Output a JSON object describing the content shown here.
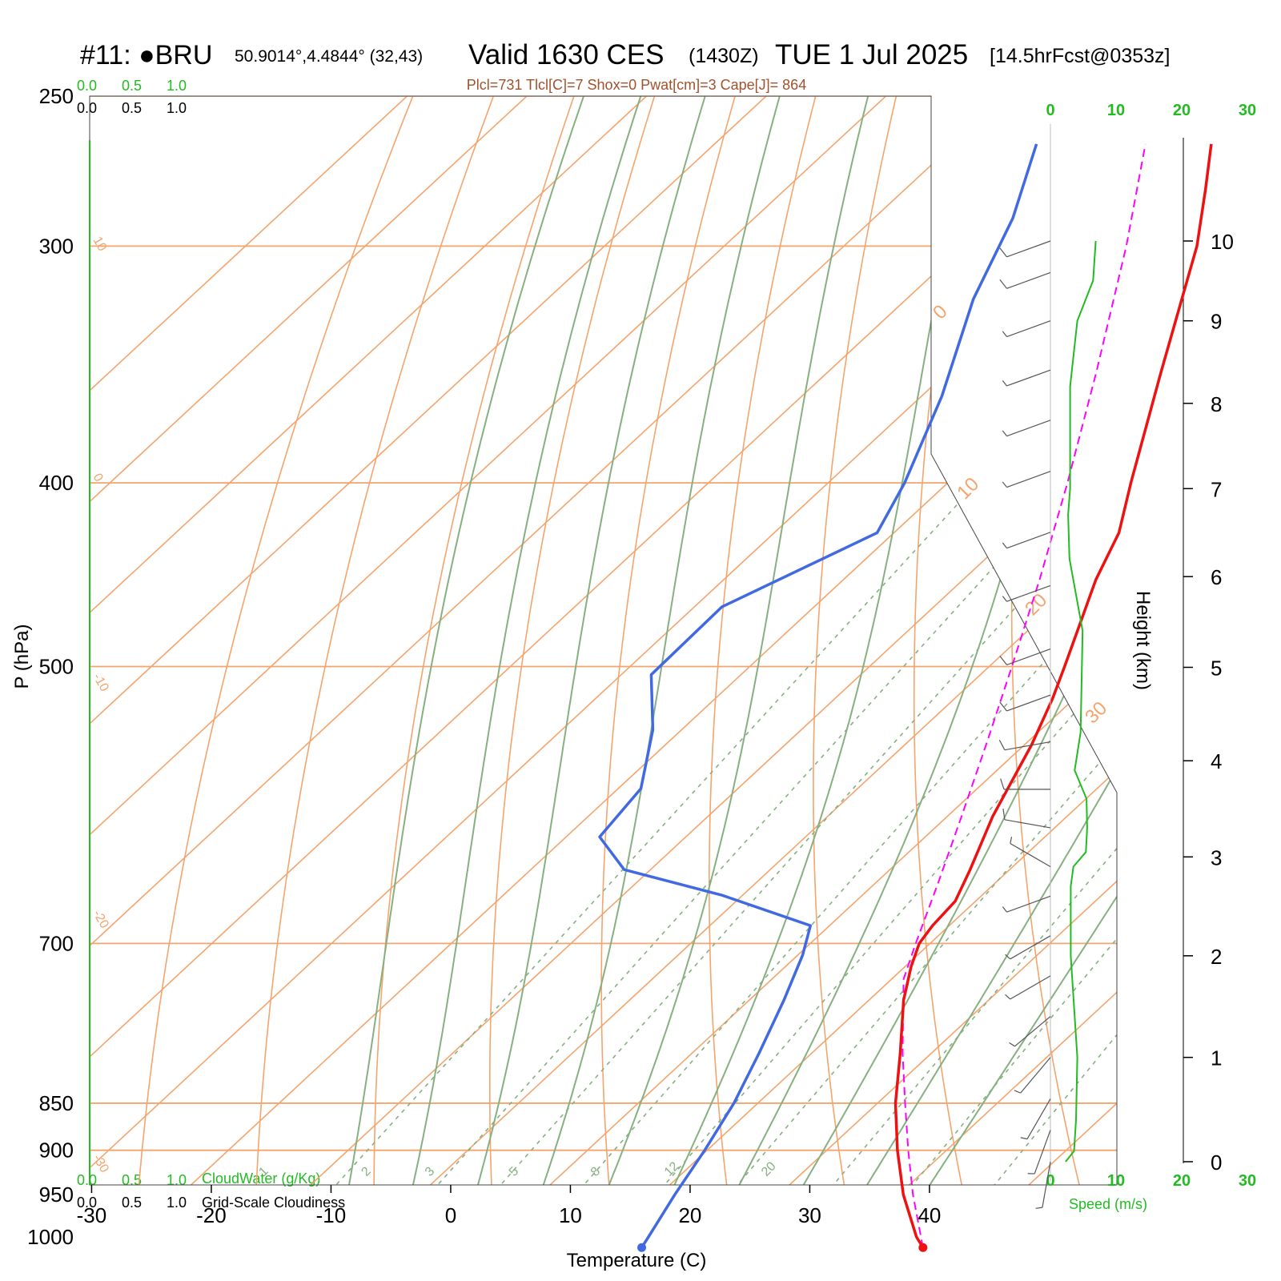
{
  "title": {
    "station": "#11: ●BRU",
    "coords": "50.9014°,4.4844° (32,43)",
    "valid": "Valid 1630 CES",
    "zulu": "(1430Z)",
    "date": "TUE 1 Jul 2025",
    "forecast": "[14.5hrFcst@0353z]"
  },
  "indices": "Plcl=731 Tlcl[C]=7 Shox=0 Pwat[cm]=3 Cape[J]= 864",
  "cloud_scale": {
    "cloudwater_ticks": [
      "0.0",
      "0.5",
      "1.0"
    ],
    "cloudwater_label": "CloudWater (g/Kg)",
    "cloudiness_ticks": [
      "0.0",
      "0.5",
      "1.0"
    ],
    "cloudiness_label": "Grid-Scale Cloudiness"
  },
  "speed_axis": {
    "ticks": [
      "0",
      "10",
      "20",
      "30"
    ],
    "label": "Speed (m/s)"
  },
  "colors": {
    "temperature": "#ee1111",
    "dewpoint": "#4169e1",
    "parcel": "#ff00ff",
    "isotherm": "#f4a46c",
    "moist_adiabat": "#86b080",
    "mixing_ratio": "#86b080",
    "speed": "#22bb22",
    "label_green": "#22bb22"
  },
  "chart_data": {
    "type": "skew-t log-p sounding",
    "xlabel": "Temperature (C)",
    "ylabel": "P (hPa)",
    "y2label": "Height (km)",
    "x_ticks": [
      -30,
      -20,
      -10,
      0,
      10,
      20,
      30,
      40
    ],
    "pressure_ticks": [
      250,
      300,
      400,
      500,
      700,
      850,
      900,
      950,
      1000
    ],
    "height_ticks_km": [
      0,
      1,
      2,
      3,
      4,
      5,
      6,
      7,
      8,
      9,
      10
    ],
    "isotherm_labels": [
      "30",
      "20",
      "10",
      "0",
      "-10",
      "-20",
      "-30"
    ],
    "mixing_ratio_labels": [
      "1",
      "2",
      "3",
      "5",
      "8",
      "12",
      "20"
    ],
    "temperature": [
      {
        "p": 1013,
        "t": 36.8
      },
      {
        "p": 1000,
        "t": 35.3
      },
      {
        "p": 950,
        "t": 30.4
      },
      {
        "p": 900,
        "t": 25.9
      },
      {
        "p": 850,
        "t": 21.5
      },
      {
        "p": 800,
        "t": 17.4
      },
      {
        "p": 750,
        "t": 12.9
      },
      {
        "p": 720,
        "t": 10.5
      },
      {
        "p": 700,
        "t": 9.1
      },
      {
        "p": 685,
        "t": 8.6
      },
      {
        "p": 665,
        "t": 8.3
      },
      {
        "p": 640,
        "t": 6.7
      },
      {
        "p": 600,
        "t": 3.8
      },
      {
        "p": 550,
        "t": 0.6
      },
      {
        "p": 520,
        "t": -1.8
      },
      {
        "p": 500,
        "t": -3.7
      },
      {
        "p": 450,
        "t": -8.9
      },
      {
        "p": 425,
        "t": -11.2
      },
      {
        "p": 400,
        "t": -14.7
      },
      {
        "p": 350,
        "t": -22.1
      },
      {
        "p": 300,
        "t": -30.5
      },
      {
        "p": 280,
        "t": -34.9
      },
      {
        "p": 265,
        "t": -38.5
      }
    ],
    "dewpoint": [
      {
        "p": 1013,
        "t": 13.3
      },
      {
        "p": 1000,
        "t": 12.9
      },
      {
        "p": 950,
        "t": 11.3
      },
      {
        "p": 900,
        "t": 9.8
      },
      {
        "p": 850,
        "t": 8.0
      },
      {
        "p": 800,
        "t": 5.6
      },
      {
        "p": 750,
        "t": 2.9
      },
      {
        "p": 710,
        "t": 0.4
      },
      {
        "p": 685,
        "t": -1.6
      },
      {
        "p": 660,
        "t": -11.8
      },
      {
        "p": 640,
        "t": -22.2
      },
      {
        "p": 615,
        "t": -27.2
      },
      {
        "p": 580,
        "t": -28.1
      },
      {
        "p": 540,
        "t": -32.4
      },
      {
        "p": 505,
        "t": -37.5
      },
      {
        "p": 465,
        "t": -37.7
      },
      {
        "p": 425,
        "t": -31.4
      },
      {
        "p": 400,
        "t": -33.6
      },
      {
        "p": 360,
        "t": -38.3
      },
      {
        "p": 320,
        "t": -44.4
      },
      {
        "p": 290,
        "t": -48.4
      },
      {
        "p": 265,
        "t": -53.1
      }
    ],
    "parcel": [
      {
        "p": 1013,
        "t": 36.8
      },
      {
        "p": 950,
        "t": 31.2
      },
      {
        "p": 900,
        "t": 26.8
      },
      {
        "p": 850,
        "t": 22.3
      },
      {
        "p": 800,
        "t": 17.6
      },
      {
        "p": 731,
        "t": 11.0
      },
      {
        "p": 700,
        "t": 8.8
      },
      {
        "p": 650,
        "t": 5.2
      },
      {
        "p": 600,
        "t": 1.2
      },
      {
        "p": 550,
        "t": -3.2
      },
      {
        "p": 500,
        "t": -8.1
      },
      {
        "p": 450,
        "t": -13.6
      },
      {
        "p": 400,
        "t": -20.0
      },
      {
        "p": 350,
        "t": -27.5
      },
      {
        "p": 300,
        "t": -36.4
      },
      {
        "p": 265,
        "t": -44.0
      }
    ],
    "wind_speed_ms": [
      {
        "z": 0.0,
        "s": 2.3
      },
      {
        "z": 0.1,
        "s": 3.6
      },
      {
        "z": 0.4,
        "s": 3.9
      },
      {
        "z": 1.0,
        "s": 4.1
      },
      {
        "z": 2.0,
        "s": 3.1
      },
      {
        "z": 2.7,
        "s": 3.1
      },
      {
        "z": 2.9,
        "s": 3.5
      },
      {
        "z": 3.05,
        "s": 5.4
      },
      {
        "z": 3.3,
        "s": 5.6
      },
      {
        "z": 3.6,
        "s": 5.5
      },
      {
        "z": 3.9,
        "s": 3.7
      },
      {
        "z": 4.3,
        "s": 4.6
      },
      {
        "z": 5.4,
        "s": 4.9
      },
      {
        "z": 6.2,
        "s": 2.9
      },
      {
        "z": 6.7,
        "s": 2.7
      },
      {
        "z": 7.0,
        "s": 3.0
      },
      {
        "z": 8.2,
        "s": 3.0
      },
      {
        "z": 9.0,
        "s": 4.1
      },
      {
        "z": 9.5,
        "s": 6.5
      },
      {
        "z": 10.0,
        "s": 6.9
      }
    ],
    "wind_barbs": [
      {
        "z": 0.0,
        "dir": 190,
        "s": 3
      },
      {
        "z": 0.3,
        "dir": 200,
        "s": 4
      },
      {
        "z": 0.6,
        "dir": 210,
        "s": 4
      },
      {
        "z": 1.0,
        "dir": 220,
        "s": 4
      },
      {
        "z": 1.4,
        "dir": 230,
        "s": 4
      },
      {
        "z": 1.8,
        "dir": 240,
        "s": 3
      },
      {
        "z": 2.2,
        "dir": 240,
        "s": 3
      },
      {
        "z": 2.6,
        "dir": 250,
        "s": 3
      },
      {
        "z": 2.9,
        "dir": 300,
        "s": 4
      },
      {
        "z": 3.3,
        "dir": 280,
        "s": 6
      },
      {
        "z": 3.7,
        "dir": 270,
        "s": 5
      },
      {
        "z": 4.2,
        "dir": 260,
        "s": 5
      },
      {
        "z": 4.7,
        "dir": 250,
        "s": 5
      },
      {
        "z": 5.2,
        "dir": 250,
        "s": 5
      },
      {
        "z": 5.9,
        "dir": 250,
        "s": 3
      },
      {
        "z": 6.5,
        "dir": 250,
        "s": 3
      },
      {
        "z": 7.2,
        "dir": 250,
        "s": 3
      },
      {
        "z": 7.8,
        "dir": 250,
        "s": 3
      },
      {
        "z": 8.4,
        "dir": 250,
        "s": 3
      },
      {
        "z": 9.0,
        "dir": 250,
        "s": 4
      },
      {
        "z": 9.6,
        "dir": 250,
        "s": 6
      },
      {
        "z": 10.0,
        "dir": 250,
        "s": 7
      }
    ]
  }
}
